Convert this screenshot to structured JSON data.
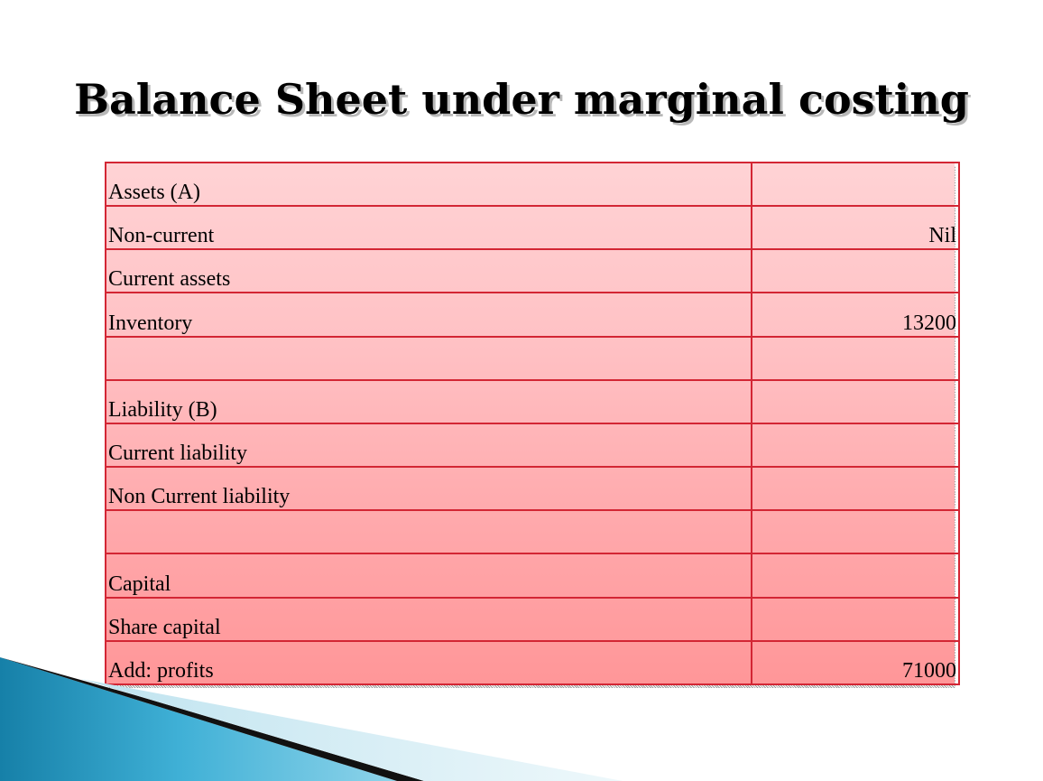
{
  "slide": {
    "title": "Balance Sheet under marginal costing"
  },
  "balance_sheet": {
    "rows": [
      {
        "label": "Assets (A)",
        "value": ""
      },
      {
        "label": "Non-current",
        "value": "Nil"
      },
      {
        "label": "Current assets",
        "value": ""
      },
      {
        "label": "Inventory",
        "value": "13200"
      },
      {
        "label": "",
        "value": ""
      },
      {
        "label": "Liability (B)",
        "value": ""
      },
      {
        "label": "Current liability",
        "value": ""
      },
      {
        "label": "Non Current liability",
        "value": ""
      },
      {
        "label": "",
        "value": ""
      },
      {
        "label": "Capital",
        "value": ""
      },
      {
        "label": "Share capital",
        "value": ""
      },
      {
        "label": "Add: profits",
        "value": "71000"
      }
    ]
  },
  "colors": {
    "grid_border": "#d32634",
    "fill_top": "#ffd3d5",
    "fill_bottom": "#ff9698",
    "swoosh_blue": "#1f8fb8",
    "swoosh_dark": "#111111"
  }
}
